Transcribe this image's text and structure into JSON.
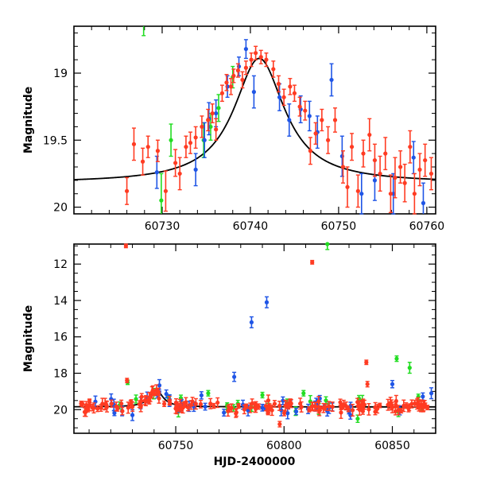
{
  "colors": {
    "red": "#ff3b22",
    "blue": "#1f55e6",
    "green": "#22dd22",
    "model": "#000000"
  },
  "chart_data": [
    {
      "type": "scatter",
      "name": "zoom-panel",
      "ylabel": "Magnitude",
      "xlabel": "",
      "xlim": [
        60720,
        60761
      ],
      "ylim": [
        20.05,
        18.65
      ],
      "y_inverted": true,
      "x_ticks": [
        60730,
        60740,
        60750,
        60760
      ],
      "x_tick_labels": [
        "60730",
        "60740",
        "60750",
        "60760"
      ],
      "y_ticks": [
        19,
        19.5,
        20
      ],
      "y_tick_labels": [
        "19",
        "19.5",
        "20"
      ],
      "model_curve": {
        "type": "lorentzian-like",
        "x_peak": 60741,
        "peak_mag": 18.89,
        "base_mag": 19.82,
        "width_days": 3.5
      },
      "series": [
        {
          "color": "red",
          "points": [
            [
              60726,
              19.88,
              0.1
            ],
            [
              60726.8,
              19.53,
              0.12
            ],
            [
              60727.8,
              19.66,
              0.1
            ],
            [
              60728.4,
              19.55,
              0.08
            ],
            [
              60729.5,
              19.58,
              0.08
            ],
            [
              60730.4,
              19.88,
              0.15
            ],
            [
              60731.5,
              19.67,
              0.1
            ],
            [
              60732,
              19.75,
              0.12
            ],
            [
              60732.7,
              19.55,
              0.08
            ],
            [
              60733.2,
              19.52,
              0.08
            ],
            [
              60733.8,
              19.48,
              0.08
            ],
            [
              60734.5,
              19.4,
              0.08
            ],
            [
              60735.2,
              19.35,
              0.08
            ],
            [
              60735.7,
              19.3,
              0.07
            ],
            [
              60736.1,
              19.42,
              0.08
            ],
            [
              60736.8,
              19.15,
              0.06
            ],
            [
              60737.3,
              19.07,
              0.06
            ],
            [
              60737.8,
              19.1,
              0.06
            ],
            [
              60738.1,
              19.02,
              0.05
            ],
            [
              60738.6,
              18.98,
              0.05
            ],
            [
              60739.1,
              19.05,
              0.06
            ],
            [
              60739.5,
              18.96,
              0.05
            ],
            [
              60740.1,
              18.9,
              0.05
            ],
            [
              60740.6,
              18.85,
              0.05
            ],
            [
              60741.2,
              18.88,
              0.05
            ],
            [
              60741.8,
              18.9,
              0.05
            ],
            [
              60742.6,
              18.97,
              0.06
            ],
            [
              60743.2,
              19.08,
              0.06
            ],
            [
              60743.8,
              19.18,
              0.06
            ],
            [
              60744.5,
              19.1,
              0.06
            ],
            [
              60745.0,
              19.15,
              0.06
            ],
            [
              60745.6,
              19.25,
              0.07
            ],
            [
              60746.2,
              19.28,
              0.07
            ],
            [
              60746.8,
              19.58,
              0.1
            ],
            [
              60747.4,
              19.45,
              0.08
            ],
            [
              60748.1,
              19.35,
              0.08
            ],
            [
              60748.8,
              19.5,
              0.1
            ],
            [
              60749.6,
              19.35,
              0.09
            ],
            [
              60750.5,
              19.7,
              0.12
            ],
            [
              60751.0,
              19.85,
              0.15
            ],
            [
              60751.5,
              19.55,
              0.1
            ],
            [
              60752.2,
              19.88,
              0.12
            ],
            [
              60752.8,
              19.6,
              0.1
            ],
            [
              60753.5,
              19.46,
              0.12
            ],
            [
              60754.1,
              19.65,
              0.12
            ],
            [
              60754.7,
              19.75,
              0.13
            ],
            [
              60755.3,
              19.6,
              0.12
            ],
            [
              60755.9,
              19.9,
              0.14
            ],
            [
              60756.4,
              19.78,
              0.15
            ],
            [
              60757.0,
              19.7,
              0.12
            ],
            [
              60757.5,
              19.82,
              0.14
            ],
            [
              60758.1,
              19.55,
              0.12
            ],
            [
              60758.6,
              19.9,
              0.15
            ],
            [
              60759.2,
              19.72,
              0.12
            ],
            [
              60759.8,
              19.65,
              0.12
            ],
            [
              60760.5,
              19.75,
              0.12
            ]
          ]
        },
        {
          "color": "blue",
          "points": [
            [
              60729.4,
              19.74,
              0.12
            ],
            [
              60733.8,
              19.72,
              0.12
            ],
            [
              60734.8,
              19.5,
              0.13
            ],
            [
              60735.3,
              19.34,
              0.12
            ],
            [
              60736.1,
              19.3,
              0.1
            ],
            [
              60737.4,
              19.1,
              0.08
            ],
            [
              60738.7,
              18.95,
              0.07
            ],
            [
              60739.5,
              18.82,
              0.07
            ],
            [
              60740.4,
              19.14,
              0.12
            ],
            [
              60743.3,
              19.18,
              0.1
            ],
            [
              60744.4,
              19.35,
              0.12
            ],
            [
              60745.7,
              19.27,
              0.1
            ],
            [
              60746.7,
              19.32,
              0.11
            ],
            [
              60747.6,
              19.44,
              0.12
            ],
            [
              60749.2,
              19.05,
              0.12
            ],
            [
              60750.4,
              19.62,
              0.15
            ],
            [
              60752.6,
              19.9,
              0.15
            ],
            [
              60754.1,
              19.8,
              0.15
            ],
            [
              60756.2,
              19.9,
              0.15
            ],
            [
              60758.5,
              19.63,
              0.12
            ],
            [
              60759.6,
              19.97,
              0.15
            ]
          ]
        },
        {
          "color": "green",
          "points": [
            [
              60727.9,
              18.62,
              0.1
            ],
            [
              60729.9,
              19.95,
              0.2
            ],
            [
              60731.0,
              19.5,
              0.12
            ],
            [
              60734.7,
              19.5,
              0.13
            ],
            [
              60735.5,
              19.4,
              0.1
            ],
            [
              60736.4,
              19.26,
              0.1
            ],
            [
              60738.0,
              19.03,
              0.08
            ]
          ]
        }
      ]
    },
    {
      "type": "scatter",
      "name": "full-panel",
      "ylabel": "Magnitude",
      "xlabel": "HJD-2400000",
      "xlim": [
        60703,
        60870
      ],
      "ylim": [
        21.3,
        10.9
      ],
      "y_inverted": true,
      "x_ticks": [
        60750,
        60800,
        60850
      ],
      "x_tick_labels": [
        "60750",
        "60800",
        "60850"
      ],
      "y_ticks": [
        12,
        14,
        16,
        18,
        20
      ],
      "y_tick_labels": [
        "12",
        "14",
        "16",
        "18",
        "20"
      ],
      "model_curve": {
        "type": "lorentzian-like",
        "x_peak": 60741,
        "peak_mag": 18.89,
        "base_mag": 19.85,
        "width_days": 3.5
      },
      "outliers": {
        "red": [
          [
            60727,
            11.0,
            0.1
          ],
          [
            60813,
            11.9,
            0.1
          ],
          [
            60727.5,
            18.4,
            0.12
          ],
          [
            60838,
            17.4,
            0.12
          ],
          [
            60838.5,
            18.6,
            0.15
          ],
          [
            60798,
            20.8,
            0.15
          ]
        ],
        "blue": [
          [
            60785,
            15.2,
            0.3
          ],
          [
            60792,
            14.1,
            0.3
          ],
          [
            60777,
            18.2,
            0.25
          ],
          [
            60850,
            18.6,
            0.2
          ],
          [
            60868,
            19.1,
            0.3
          ],
          [
            60730,
            20.3,
            0.3
          ]
        ],
        "green": [
          [
            60820,
            10.9,
            0.3
          ],
          [
            60852,
            17.2,
            0.15
          ],
          [
            60858,
            17.7,
            0.3
          ],
          [
            60765,
            19.1,
            0.15
          ],
          [
            60790,
            19.2,
            0.15
          ],
          [
            60809,
            19.1,
            0.15
          ],
          [
            60834,
            20.5,
            0.2
          ],
          [
            60862,
            19.3,
            0.15
          ],
          [
            60727.8,
            18.5,
            0.12
          ]
        ]
      },
      "dense_band": {
        "x_range": [
          60706,
          60868
        ],
        "base_mag": 19.95,
        "scatter": 0.18,
        "count_red": 160,
        "count_blue": 45,
        "count_green": 22
      }
    }
  ]
}
